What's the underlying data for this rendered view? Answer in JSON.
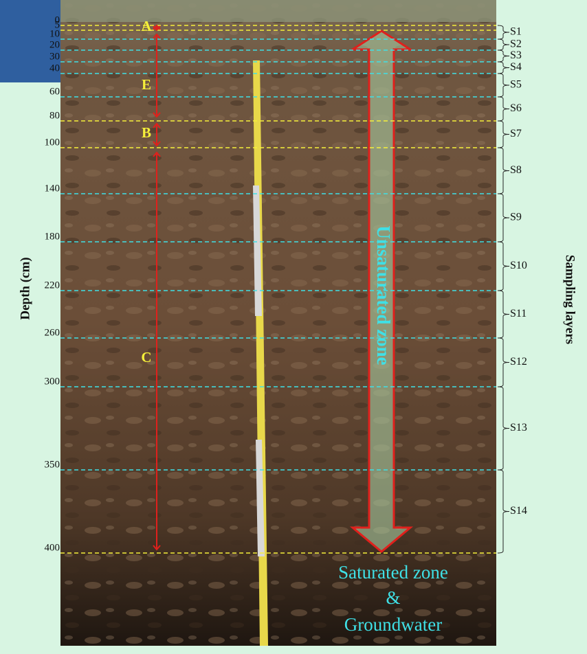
{
  "depth_axis": {
    "label": "Depth (cm)",
    "ticks": [
      0,
      5,
      10,
      20,
      30,
      40,
      60,
      80,
      100,
      140,
      180,
      220,
      260,
      300,
      350,
      400
    ]
  },
  "horizons": [
    {
      "label": "A"
    },
    {
      "label": "E"
    },
    {
      "label": "B"
    },
    {
      "label": "C"
    }
  ],
  "sampling_layers": {
    "label": "Sampling layers",
    "layers": [
      "S1",
      "S2",
      "S3",
      "S4",
      "S5",
      "S6",
      "S7",
      "S8",
      "S9",
      "S10",
      "S11",
      "S12",
      "S13",
      "S14"
    ]
  },
  "zones": {
    "unsaturated": "Unsaturated zone",
    "saturated": [
      "Saturated zone",
      "&",
      "Groundwater"
    ]
  }
}
